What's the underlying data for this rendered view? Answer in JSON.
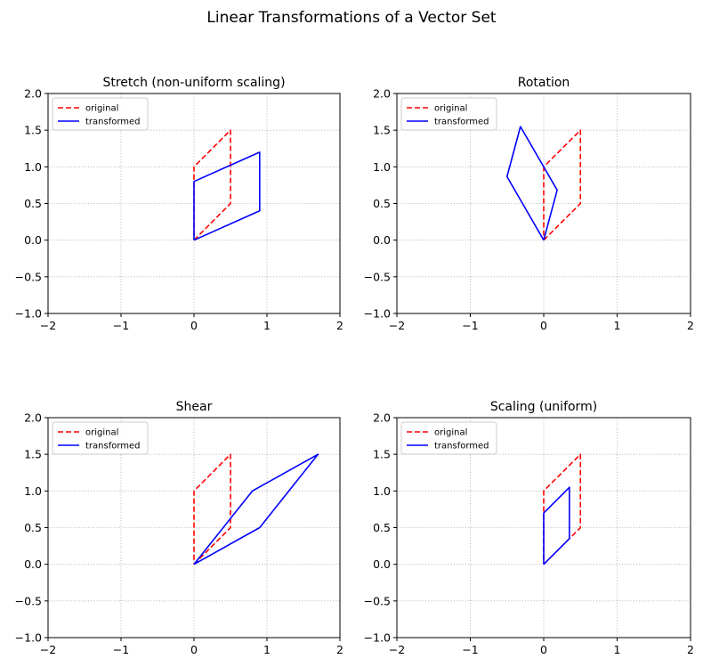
{
  "suptitle": "Linear Transformations of a Vector Set",
  "chart_data": [
    {
      "type": "line",
      "title": "Stretch (non-uniform scaling)",
      "xlim": [
        -2,
        2
      ],
      "ylim": [
        -1,
        2
      ],
      "xticks": [
        -2,
        -1,
        0,
        1,
        2
      ],
      "yticks": [
        -1.0,
        -0.5,
        0.0,
        0.5,
        1.0,
        1.5,
        2.0
      ],
      "grid": true,
      "legend_position": "top-left",
      "series": [
        {
          "name": "original",
          "color": "#ff0000",
          "style": "dashed",
          "x": [
            0,
            0.5,
            0.5,
            0,
            0
          ],
          "y": [
            0,
            0.5,
            1.5,
            1,
            0
          ]
        },
        {
          "name": "transformed",
          "color": "#0000ff",
          "style": "solid",
          "x": [
            0,
            0.9,
            0.9,
            0,
            0
          ],
          "y": [
            0,
            0.4,
            1.2,
            0.8,
            0
          ]
        }
      ]
    },
    {
      "type": "line",
      "title": "Rotation",
      "xlim": [
        -2,
        2
      ],
      "ylim": [
        -1,
        2
      ],
      "xticks": [
        -2,
        -1,
        0,
        1,
        2
      ],
      "yticks": [
        -1.0,
        -0.5,
        0.0,
        0.5,
        1.0,
        1.5,
        2.0
      ],
      "grid": true,
      "legend_position": "top-left",
      "series": [
        {
          "name": "original",
          "color": "#ff0000",
          "style": "dashed",
          "x": [
            0,
            0.5,
            0.5,
            0,
            0
          ],
          "y": [
            0,
            0.5,
            1.5,
            1,
            0
          ]
        },
        {
          "name": "transformed",
          "color": "#0000ff",
          "style": "solid",
          "x": [
            0,
            0.183,
            -0.317,
            -0.5,
            0
          ],
          "y": [
            0,
            0.683,
            1.549,
            0.866,
            0
          ]
        }
      ]
    },
    {
      "type": "line",
      "title": "Shear",
      "xlim": [
        -2,
        2
      ],
      "ylim": [
        -1,
        2
      ],
      "xticks": [
        -2,
        -1,
        0,
        1,
        2
      ],
      "yticks": [
        -1.0,
        -0.5,
        0.0,
        0.5,
        1.0,
        1.5,
        2.0
      ],
      "grid": true,
      "legend_position": "top-left",
      "series": [
        {
          "name": "original",
          "color": "#ff0000",
          "style": "dashed",
          "x": [
            0,
            0.5,
            0.5,
            0,
            0
          ],
          "y": [
            0,
            0.5,
            1.5,
            1,
            0
          ]
        },
        {
          "name": "transformed",
          "color": "#0000ff",
          "style": "solid",
          "x": [
            0,
            0.9,
            1.7,
            0.8,
            0
          ],
          "y": [
            0,
            0.5,
            1.5,
            1,
            0
          ]
        }
      ]
    },
    {
      "type": "line",
      "title": "Scaling (uniform)",
      "xlim": [
        -2,
        2
      ],
      "ylim": [
        -1,
        2
      ],
      "xticks": [
        -2,
        -1,
        0,
        1,
        2
      ],
      "yticks": [
        -1.0,
        -0.5,
        0.0,
        0.5,
        1.0,
        1.5,
        2.0
      ],
      "grid": true,
      "legend_position": "top-left",
      "series": [
        {
          "name": "original",
          "color": "#ff0000",
          "style": "dashed",
          "x": [
            0,
            0.5,
            0.5,
            0,
            0
          ],
          "y": [
            0,
            0.5,
            1.5,
            1,
            0
          ]
        },
        {
          "name": "transformed",
          "color": "#0000ff",
          "style": "solid",
          "x": [
            0,
            0.35,
            0.35,
            0,
            0
          ],
          "y": [
            0,
            0.35,
            1.05,
            0.7,
            0
          ]
        }
      ]
    }
  ]
}
